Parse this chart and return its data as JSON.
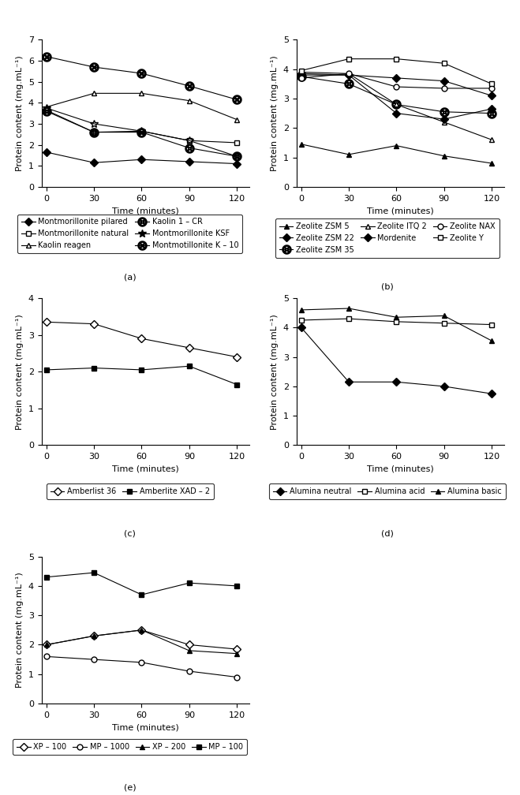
{
  "time": [
    0,
    30,
    60,
    90,
    120
  ],
  "panel_a": {
    "ylabel": "Protein content (mg.mL⁻¹)",
    "xlabel": "Time (minutes)",
    "ylim": [
      0,
      7
    ],
    "yticks": [
      0,
      1,
      2,
      3,
      4,
      5,
      6,
      7
    ],
    "series": [
      {
        "name": "Montmorillonite pilared",
        "values": [
          1.65,
          1.15,
          1.3,
          1.2,
          1.1
        ],
        "marker": "D",
        "filled": true
      },
      {
        "name": "Montmorillonite natural",
        "values": [
          3.65,
          2.6,
          2.65,
          2.2,
          2.1
        ],
        "marker": "s",
        "filled": false
      },
      {
        "name": "Kaolin reagen",
        "values": [
          3.8,
          4.45,
          4.45,
          4.1,
          3.2
        ],
        "marker": "^",
        "filled": false
      },
      {
        "name": "Kaolin 1 – CR",
        "values": [
          3.6,
          2.6,
          2.6,
          1.85,
          1.45
        ],
        "marker": "otimes",
        "filled": false
      },
      {
        "name": "Montmorillonite KSF",
        "values": [
          3.75,
          3.0,
          2.65,
          2.2,
          1.45
        ],
        "marker": "*",
        "filled": false
      },
      {
        "name": "Montmotillonite K – 10",
        "values": [
          6.2,
          5.7,
          5.4,
          4.8,
          4.15
        ],
        "marker": "otimes",
        "filled": true
      }
    ],
    "legend_ncol": 2,
    "legend_label": "(a)"
  },
  "panel_b": {
    "ylabel": "Protein content (mg.mL⁻¹)",
    "xlabel": "Time (minutes)",
    "ylim": [
      0,
      5
    ],
    "yticks": [
      0,
      1,
      2,
      3,
      4,
      5
    ],
    "series": [
      {
        "name": "Zeolite ZSM 5",
        "values": [
          1.45,
          1.1,
          1.4,
          1.05,
          0.8
        ],
        "marker": "^",
        "filled": true
      },
      {
        "name": "Zeolite ZSM 22",
        "values": [
          3.85,
          3.8,
          3.7,
          3.6,
          3.1
        ],
        "marker": "D",
        "filled": true
      },
      {
        "name": "Zeolite ZSM 35",
        "values": [
          3.75,
          3.5,
          2.8,
          2.55,
          2.5
        ],
        "marker": "otimes",
        "filled": false
      },
      {
        "name": "Zeolite ITQ 2",
        "values": [
          3.9,
          3.85,
          2.8,
          2.2,
          1.6
        ],
        "marker": "^",
        "filled": false
      },
      {
        "name": "Mordenite",
        "values": [
          3.8,
          3.8,
          2.5,
          2.3,
          2.65
        ],
        "marker": "D",
        "filled": true,
        "small": true
      },
      {
        "name": "Zeolite NAX",
        "values": [
          3.7,
          3.85,
          3.4,
          3.35,
          3.35
        ],
        "marker": "o",
        "filled": false
      },
      {
        "name": "Zeolite Y",
        "values": [
          3.95,
          4.35,
          4.35,
          4.2,
          3.5
        ],
        "marker": "s",
        "filled": false
      }
    ],
    "legend_ncol": 3,
    "legend_label": "(b)"
  },
  "panel_c": {
    "ylabel": "Protein content (mg.mL⁻¹)",
    "xlabel": "Time (minutes)",
    "ylim": [
      0,
      4
    ],
    "yticks": [
      0,
      1,
      2,
      3,
      4
    ],
    "series": [
      {
        "name": "Amberlist 36",
        "values": [
          3.35,
          3.3,
          2.9,
          2.65,
          2.4
        ],
        "marker": "D",
        "filled": false
      },
      {
        "name": "Amberlite XAD – 2",
        "values": [
          2.05,
          2.1,
          2.05,
          2.15,
          1.65
        ],
        "marker": "s",
        "filled": true
      }
    ],
    "legend_ncol": 2,
    "legend_label": "(c)"
  },
  "panel_d": {
    "ylabel": "Protein content (mg.mL⁻¹)",
    "xlabel": "Time (minutes)",
    "ylim": [
      0,
      5
    ],
    "yticks": [
      0,
      1,
      2,
      3,
      4,
      5
    ],
    "series": [
      {
        "name": "Alumina neutral",
        "values": [
          4.0,
          2.15,
          2.15,
          2.0,
          1.75
        ],
        "marker": "D",
        "filled": true
      },
      {
        "name": "Alumina acid",
        "values": [
          4.25,
          4.3,
          4.2,
          4.15,
          4.1
        ],
        "marker": "s",
        "filled": false
      },
      {
        "name": "Alumina basic",
        "values": [
          4.6,
          4.65,
          4.35,
          4.4,
          3.55
        ],
        "marker": "^",
        "filled": true
      }
    ],
    "legend_ncol": 3,
    "legend_label": "(d)"
  },
  "panel_e": {
    "ylabel": "Protein content (mg.mL⁻¹)",
    "xlabel": "Time (minutes)",
    "ylim": [
      0,
      5
    ],
    "yticks": [
      0,
      1,
      2,
      3,
      4,
      5
    ],
    "series": [
      {
        "name": "XP – 100",
        "values": [
          2.0,
          2.3,
          2.5,
          2.0,
          1.85
        ],
        "marker": "D",
        "filled": false
      },
      {
        "name": "MP – 1000",
        "values": [
          1.6,
          1.5,
          1.4,
          1.1,
          0.9
        ],
        "marker": "o",
        "filled": false
      },
      {
        "name": "XP – 200",
        "values": [
          2.0,
          2.3,
          2.5,
          1.8,
          1.7
        ],
        "marker": "^",
        "filled": true
      },
      {
        "name": "MP – 100",
        "values": [
          4.3,
          4.45,
          3.7,
          4.1,
          4.0
        ],
        "marker": "s",
        "filled": true
      }
    ],
    "legend_ncol": 4,
    "legend_label": "(e)"
  }
}
